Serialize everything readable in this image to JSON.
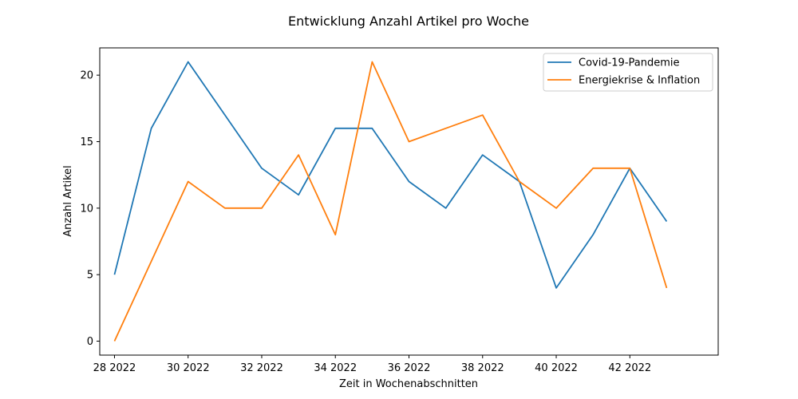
{
  "chart_data": {
    "type": "line",
    "title": "Entwicklung Anzahl Artikel pro Woche",
    "xlabel": "Zeit in Wochenabschnitten",
    "ylabel": "Anzahl Artikel",
    "x": [
      28,
      29,
      30,
      31,
      32,
      33,
      34,
      35,
      36,
      37,
      38,
      39,
      40,
      41,
      42,
      43
    ],
    "xlim": [
      27.6,
      44.4
    ],
    "ylim": [
      -1.05,
      22.05
    ],
    "xticks": [
      28,
      30,
      32,
      34,
      36,
      38,
      40,
      42
    ],
    "xtick_labels": [
      "28 2022",
      "30 2022",
      "32 2022",
      "34 2022",
      "36 2022",
      "38 2022",
      "40 2022",
      "42 2022"
    ],
    "yticks": [
      0,
      5,
      10,
      15,
      20
    ],
    "ytick_labels": [
      "0",
      "5",
      "10",
      "15",
      "20"
    ],
    "grid": false,
    "legend_position": "top-right",
    "series": [
      {
        "name": "Covid-19-Pandemie",
        "color": "#1f77b4",
        "values": [
          5,
          16,
          21,
          17,
          13,
          11,
          16,
          16,
          12,
          10,
          14,
          12,
          4,
          8,
          13,
          9
        ]
      },
      {
        "name": "Energiekrise & Inflation",
        "color": "#ff7f0e",
        "values": [
          0,
          6,
          12,
          10,
          10,
          14,
          8,
          21,
          15,
          16,
          17,
          12,
          10,
          13,
          13,
          4
        ]
      }
    ]
  }
}
